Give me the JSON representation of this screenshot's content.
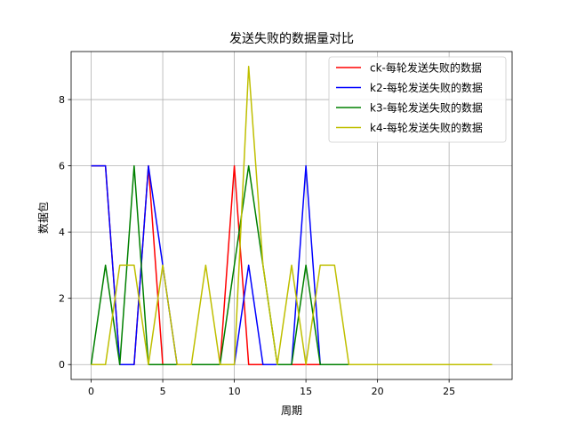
{
  "chart_data": {
    "type": "line",
    "title": "发送失败的数据量对比",
    "xlabel": "周期",
    "ylabel": "数据包",
    "xlim": [
      -1.4,
      29.4
    ],
    "ylim": [
      -0.45,
      9.45
    ],
    "xticks": [
      0,
      5,
      10,
      15,
      20,
      25
    ],
    "yticks": [
      0,
      2,
      4,
      6,
      8
    ],
    "grid": true,
    "legend_position": "top-right",
    "x": [
      0,
      1,
      2,
      3,
      4,
      5,
      6,
      7,
      8,
      9,
      10,
      11,
      12,
      13,
      14,
      15,
      16,
      17,
      18,
      19,
      20,
      21,
      22,
      23,
      24,
      25,
      26,
      27,
      28
    ],
    "series": [
      {
        "name": "ck-每轮发送失败的数据",
        "color": "#ff0000",
        "values": [
          6,
          6,
          0,
          0,
          6,
          0,
          0,
          0,
          0,
          0,
          6,
          0,
          0,
          0,
          0,
          0,
          0,
          0,
          0,
          0,
          0,
          0,
          0,
          0,
          0,
          0,
          0,
          0,
          0
        ]
      },
      {
        "name": "k2-每轮发送失败的数据",
        "color": "#0000ff",
        "values": [
          6,
          6,
          0,
          0,
          6,
          3,
          0,
          0,
          0,
          0,
          0,
          3,
          0,
          0,
          0,
          6,
          0,
          0,
          0,
          0,
          0,
          0,
          0,
          0,
          0,
          0,
          0,
          0,
          0
        ]
      },
      {
        "name": "k3-每轮发送失败的数据",
        "color": "#008000",
        "values": [
          0,
          3,
          0,
          6,
          0,
          0,
          0,
          0,
          0,
          0,
          3,
          6,
          3,
          0,
          0,
          3,
          0,
          0,
          0,
          0,
          0,
          0,
          0,
          0,
          0,
          0,
          0,
          0,
          0
        ]
      },
      {
        "name": "k4-每轮发送失败的数据",
        "color": "#bfbf00",
        "values": [
          0,
          0,
          3,
          3,
          0,
          3,
          0,
          0,
          3,
          0,
          0,
          9,
          3,
          0,
          3,
          0,
          3,
          3,
          0,
          0,
          0,
          0,
          0,
          0,
          0,
          0,
          0,
          0,
          0
        ]
      }
    ]
  }
}
